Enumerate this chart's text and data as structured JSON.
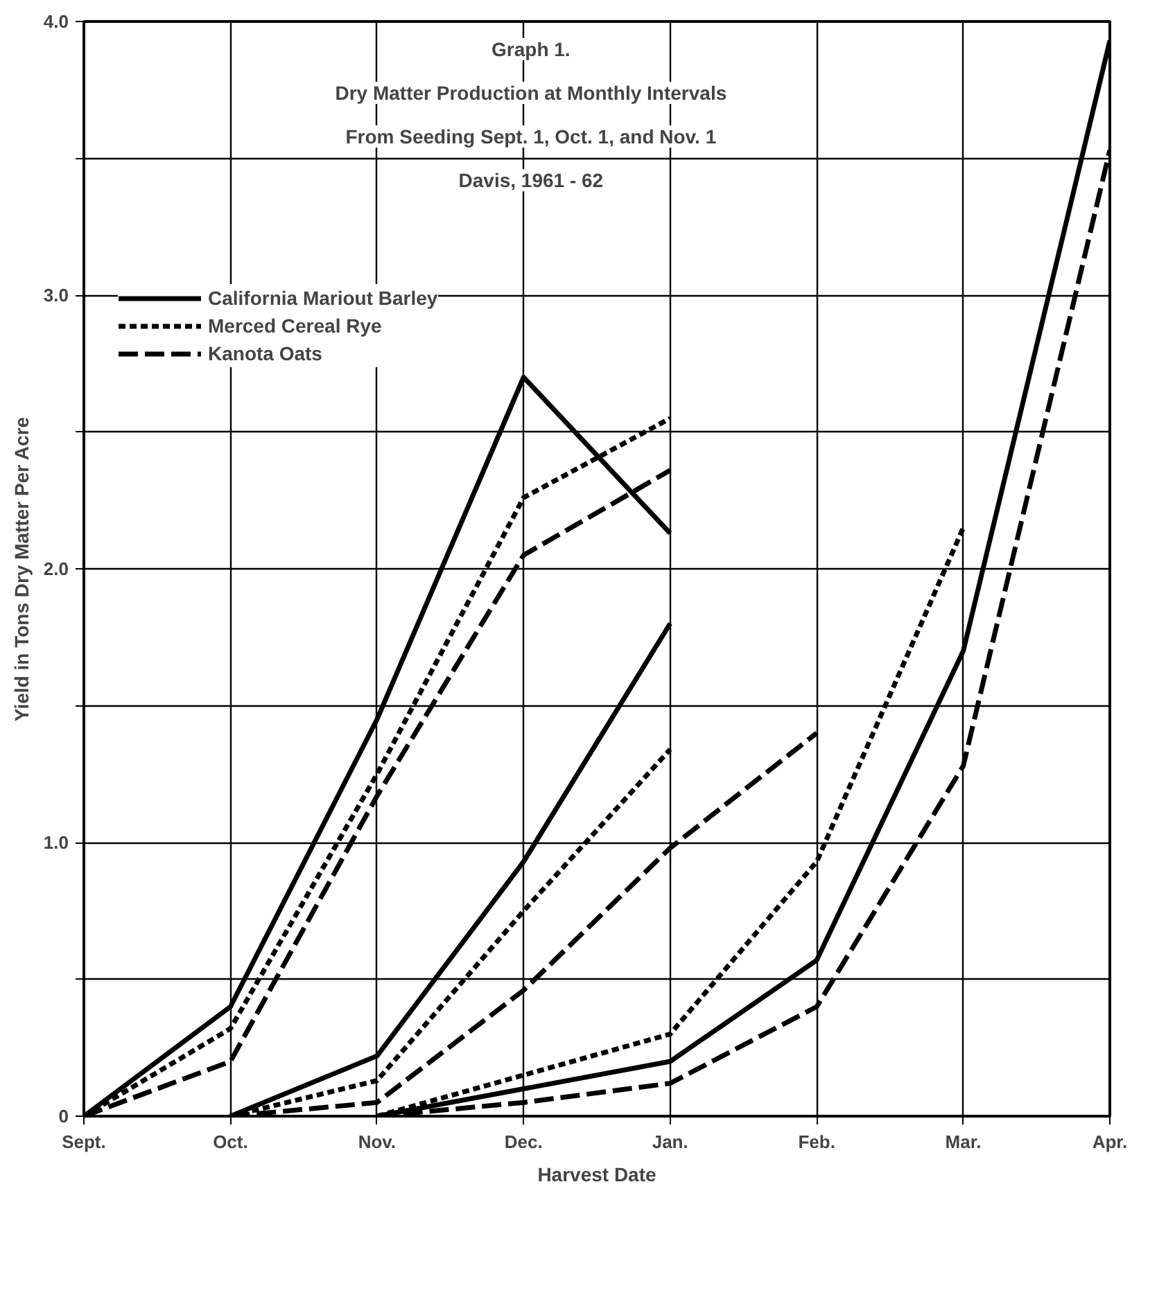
{
  "chart_data": {
    "type": "line",
    "title": "Graph 1.\nDry Matter Production at Monthly Intervals\nFrom Seeding Sept. 1, Oct. 1, and Nov. 1\nDavis, 1961 - 62",
    "xlabel": "Harvest Date",
    "ylabel": "Yield in Tons Dry Matter Per Acre",
    "categories": [
      "Sept.",
      "Oct.",
      "Nov.",
      "Dec.",
      "Jan.",
      "Feb.",
      "Mar.",
      "Apr."
    ],
    "ylim": [
      0,
      4.0
    ],
    "yticks": [
      {
        "value": 0,
        "label": "0"
      },
      {
        "value": 0.5,
        "label": null
      },
      {
        "value": 1,
        "label": "1.0"
      },
      {
        "value": 1.5,
        "label": null
      },
      {
        "value": 2,
        "label": "2.0"
      },
      {
        "value": 2.5,
        "label": null
      },
      {
        "value": 3,
        "label": "3.0"
      },
      {
        "value": 3.5,
        "label": null
      },
      {
        "value": 4,
        "label": "4.0"
      }
    ],
    "grid": true,
    "legend": "top left",
    "series": [
      {
        "name": "California Mariout Barley",
        "color": "#000000",
        "line_style": "solid",
        "values": [
          0,
          0.4,
          1.45,
          2.7,
          2.13,
          null,
          null,
          null
        ]
      },
      {
        "name": "Merced Cereal Rye",
        "color": "#000000",
        "line_style": "dotted",
        "values": [
          0,
          0.32,
          1.25,
          2.26,
          2.55,
          null,
          null,
          null
        ]
      },
      {
        "name": "Kanota Oats",
        "color": "#000000",
        "line_style": "dashed",
        "values": [
          0,
          0.2,
          1.17,
          2.05,
          2.36,
          null,
          null,
          null
        ]
      },
      {
        "color": "#000000",
        "line_style": "solid",
        "values": [
          null,
          0,
          0.22,
          0.93,
          1.8,
          null,
          null,
          null
        ]
      },
      {
        "color": "#000000",
        "line_style": "dotted",
        "values": [
          null,
          0,
          0.13,
          0.75,
          1.34,
          null,
          null,
          null
        ]
      },
      {
        "color": "#000000",
        "line_style": "dashed",
        "values": [
          null,
          0,
          0.05,
          0.46,
          0.98,
          1.4,
          null,
          null
        ]
      },
      {
        "color": "#000000",
        "line_style": "solid",
        "values": [
          null,
          null,
          0,
          0.1,
          0.2,
          0.57,
          1.7,
          3.93
        ]
      },
      {
        "color": "#000000",
        "line_style": "dotted",
        "values": [
          null,
          null,
          0,
          0.15,
          0.3,
          0.93,
          2.15,
          null
        ]
      },
      {
        "color": "#000000",
        "line_style": "dashed",
        "values": [
          null,
          null,
          0,
          0.05,
          0.12,
          0.4,
          1.28,
          3.53
        ]
      }
    ]
  }
}
